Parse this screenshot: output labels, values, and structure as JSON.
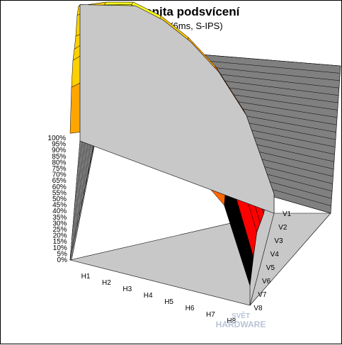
{
  "title": "Homogenita podsvícení",
  "subtitle": "HP LP3065 (6ms, S-IPS)",
  "chart_data": {
    "type": "surface",
    "title": "Homogenita podsvícení",
    "subtitle": "HP LP3065 (6ms, S-IPS)",
    "z_ticks": [
      "0%",
      "5%",
      "10%",
      "15%",
      "20%",
      "25%",
      "30%",
      "35%",
      "40%",
      "45%",
      "50%",
      "55%",
      "60%",
      "65%",
      "70%",
      "75%",
      "80%",
      "85%",
      "90%",
      "95%",
      "100%"
    ],
    "zlim": [
      0,
      100
    ],
    "h_categories": [
      "H1",
      "H2",
      "H3",
      "H4",
      "H5",
      "H6",
      "H7",
      "H8"
    ],
    "v_categories": [
      "V1",
      "V2",
      "V3",
      "V4",
      "V5",
      "V6",
      "V7",
      "V8"
    ],
    "values": [
      [
        70,
        75,
        80,
        78,
        72,
        62,
        45,
        10
      ],
      [
        78,
        85,
        90,
        88,
        82,
        72,
        55,
        18
      ],
      [
        82,
        92,
        97,
        93,
        86,
        78,
        62,
        22
      ],
      [
        80,
        90,
        95,
        92,
        85,
        76,
        60,
        20
      ],
      [
        82,
        95,
        100,
        96,
        88,
        78,
        62,
        22
      ],
      [
        85,
        97,
        98,
        95,
        88,
        80,
        65,
        24
      ],
      [
        80,
        90,
        92,
        90,
        84,
        76,
        60,
        18
      ],
      [
        65,
        70,
        72,
        70,
        66,
        60,
        48,
        10
      ]
    ],
    "colors": [
      "#ffff20",
      "#ffd000",
      "#ffa500",
      "#ff6600",
      "#ff0000",
      "#000000",
      "#800080",
      "#00ffff"
    ],
    "grid": true
  },
  "watermark_text": "SVĚT HARDWARE"
}
